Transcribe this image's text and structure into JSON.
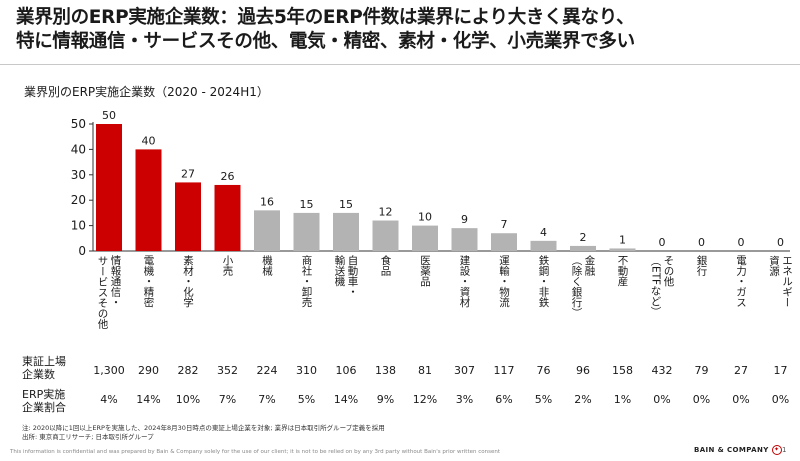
{
  "headline": {
    "line1": "業界別のERP実施企業数：過去5年のERP件数は業界により大きく異なり、",
    "line2": "特に情報通信・サービスその他、電気・精密、素材・化学、小売業界で多い"
  },
  "chart_data": {
    "type": "bar",
    "title": "業界別のERP実施企業数（2020 - 2024H1）",
    "categories": [
      "情報通信・サービスその他",
      "電機・精密",
      "素材・化学",
      "小売",
      "機械",
      "商社・卸売",
      "自動車・輸送機",
      "食品",
      "医薬品",
      "建設・資材",
      "運輸・物流",
      "鉄鋼・非鉄",
      "金融（除く銀行）",
      "不動産",
      "その他（ETFなど）",
      "銀行",
      "電力・ガス",
      "エネルギー資源"
    ],
    "category_label_columns": [
      [
        "情報通信・",
        "サービスその他"
      ],
      [
        "電機・精密"
      ],
      [
        "素材・化学"
      ],
      [
        "小売"
      ],
      [
        "機械"
      ],
      [
        "商社・卸売"
      ],
      [
        "自動車・",
        "輸送機"
      ],
      [
        "食品"
      ],
      [
        "医薬品"
      ],
      [
        "建設・資材"
      ],
      [
        "運輸・物流"
      ],
      [
        "鉄鋼・非鉄"
      ],
      [
        "金融",
        "（除く銀行）"
      ],
      [
        "不動産"
      ],
      [
        "その他",
        "（ETFなど）"
      ],
      [
        "銀行"
      ],
      [
        "電力・ガス"
      ],
      [
        "エネルギー",
        "資源"
      ]
    ],
    "values": [
      50,
      40,
      27,
      26,
      16,
      15,
      15,
      12,
      10,
      9,
      7,
      4,
      2,
      1,
      0,
      0,
      0,
      0
    ],
    "highlighted": [
      true,
      true,
      true,
      true,
      false,
      false,
      false,
      false,
      false,
      false,
      false,
      false,
      false,
      false,
      false,
      false,
      false,
      false
    ],
    "ylim": [
      0,
      50
    ],
    "yticks": [
      0,
      10,
      20,
      30,
      40,
      50
    ],
    "grid": false,
    "colors": {
      "highlight": "#cc0000",
      "normal": "#b3b3b3",
      "axis": "#333333"
    }
  },
  "table": {
    "rows": [
      {
        "label": [
          "東証上場",
          "企業数"
        ],
        "values": [
          "1,300",
          "290",
          "282",
          "352",
          "224",
          "310",
          "106",
          "138",
          "81",
          "307",
          "117",
          "76",
          "96",
          "158",
          "432",
          "79",
          "27",
          "17"
        ]
      },
      {
        "label": [
          "ERP実施",
          "企業割合"
        ],
        "values": [
          "4%",
          "14%",
          "10%",
          "7%",
          "7%",
          "5%",
          "14%",
          "9%",
          "12%",
          "3%",
          "6%",
          "5%",
          "2%",
          "1%",
          "0%",
          "0%",
          "0%",
          "0%"
        ]
      }
    ]
  },
  "notes": {
    "line1": "注: 2020以降に1回以上ERPを実施した、2024年8月30日時点の東証上場企業を対象; 業界は日本取引所グループ定義を採用",
    "line2": "出所: 東京商工リサーチ; 日本取引所グループ"
  },
  "footer": {
    "confidential": "This information is confidential and was prepared by Bain & Company solely for the use of our client; it is not to be relied on by any 3rd party without Bain's prior written consent",
    "logo_text": "BAIN & COMPANY",
    "page": "1"
  }
}
